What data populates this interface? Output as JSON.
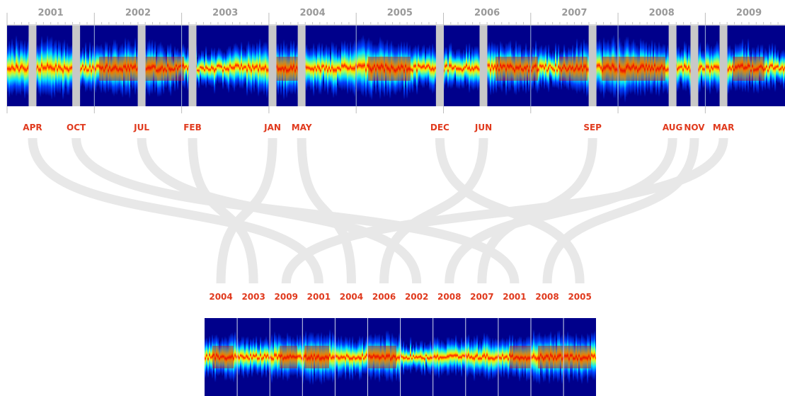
{
  "timeline": {
    "years": [
      "2001",
      "2002",
      "2003",
      "2004",
      "2005",
      "2006",
      "2007",
      "2008",
      "2009"
    ],
    "selected_months": [
      {
        "label": "APR",
        "year": "2001"
      },
      {
        "label": "OCT",
        "year": "2001"
      },
      {
        "label": "JUL",
        "year": "2002"
      },
      {
        "label": "FEB",
        "year": "2003"
      },
      {
        "label": "JAN",
        "year": "2004"
      },
      {
        "label": "MAY",
        "year": "2004"
      },
      {
        "label": "DEC",
        "year": "2005"
      },
      {
        "label": "JUN",
        "year": "2006"
      },
      {
        "label": "SEP",
        "year": "2007"
      },
      {
        "label": "AUG",
        "year": "2008"
      },
      {
        "label": "NOV",
        "year": "2008"
      },
      {
        "label": "MAR",
        "year": "2009"
      }
    ]
  },
  "samples": {
    "labels": [
      "2004",
      "2003",
      "2009",
      "2001",
      "2004",
      "2006",
      "2002",
      "2008",
      "2007",
      "2001",
      "2008",
      "2005"
    ]
  },
  "colors": {
    "year_text": "#9a9a9a",
    "month_text": "#e03a1e",
    "link": "#e8e8e8",
    "highlight_band": "#c8c8c8",
    "heatmap_background": "#00008b"
  }
}
